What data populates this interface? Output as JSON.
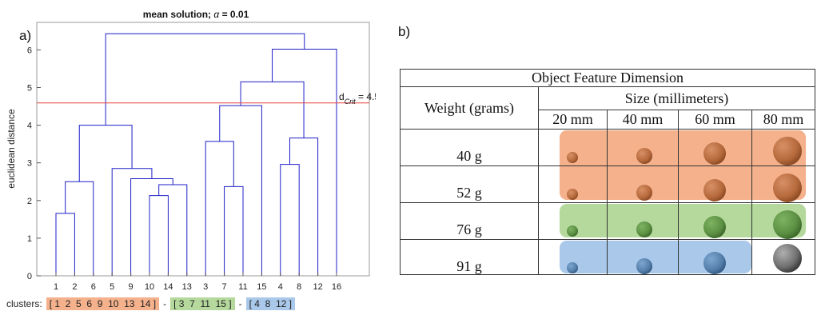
{
  "panel_a": {
    "label": "a)",
    "title": "mean solution; α = 0.01",
    "title_prefix": "mean solution; ",
    "title_alpha": "α",
    "title_suffix": " = 0.01",
    "ylabel": "euclidean distance",
    "dcrit_label": "d",
    "dcrit_sub": "Crit",
    "dcrit_value_text": " = 4.59",
    "clusters_label": "clusters:",
    "cluster_groups": [
      {
        "text": "[ 1  2  5  6  9  10  13  14 ]",
        "color": "#f4b18c"
      },
      {
        "text": "[ 3  7  11  15 ]",
        "color": "#b5d99c"
      },
      {
        "text": "[ 4  8  12 ]",
        "color": "#a9c8ea"
      }
    ],
    "separator": "-"
  },
  "chart_data": {
    "type": "dendrogram",
    "title": "mean solution; α = 0.01",
    "ylabel": "euclidean distance",
    "xlabel": "",
    "ylim": [
      0,
      6.7
    ],
    "yticks": [
      0,
      1,
      2,
      3,
      4,
      5,
      6
    ],
    "leaf_order": [
      "1",
      "2",
      "6",
      "5",
      "9",
      "10",
      "14",
      "13",
      "3",
      "7",
      "11",
      "15",
      "4",
      "8",
      "12",
      "16"
    ],
    "threshold": 4.59,
    "threshold_color": "#e8413c",
    "line_color": "#1f1fc8",
    "links": [
      {
        "left": "10",
        "right": "14",
        "height": 2.13
      },
      {
        "left": "10-14",
        "right": "13",
        "height": 2.42
      },
      {
        "left": "9",
        "right": "10-14-13",
        "height": 2.58
      },
      {
        "left": "5",
        "right": "9-10-14-13",
        "height": 2.85
      },
      {
        "left": "1",
        "right": "2",
        "height": 1.66
      },
      {
        "left": "1-2",
        "right": "6",
        "height": 2.5
      },
      {
        "left": "1-2-6",
        "right": "5-9-10-14-13",
        "height": 4.0
      },
      {
        "left": "7",
        "right": "11",
        "height": 2.37
      },
      {
        "left": "3",
        "right": "7-11",
        "height": 3.57
      },
      {
        "left": "3-7-11",
        "right": "15",
        "height": 4.52
      },
      {
        "left": "4",
        "right": "8",
        "height": 2.96
      },
      {
        "left": "4-8",
        "right": "12",
        "height": 3.66
      },
      {
        "left": "3-7-11-15",
        "right": "4-8-12",
        "height": 5.15
      },
      {
        "left": "3-7-11-15-4-8-12",
        "right": "16",
        "height": 6.02
      },
      {
        "left": "1-2-6-5-9-10-14-13",
        "right": "3-7-11-15-4-8-12-16",
        "height": 6.43
      }
    ]
  },
  "panel_b": {
    "label": "b)",
    "table_title": "Object Feature Dimension",
    "row_header": "Weight (grams)",
    "col_group_header": "Size (millimeters)",
    "columns": [
      "20 mm",
      "40 mm",
      "60 mm",
      "80 mm"
    ],
    "rows": [
      "40 g",
      "52 g",
      "76 g",
      "91 g"
    ],
    "highlight_colors": {
      "orange": "#f4b18c",
      "green": "#b5d99c",
      "blue": "#a9c8ea"
    }
  }
}
